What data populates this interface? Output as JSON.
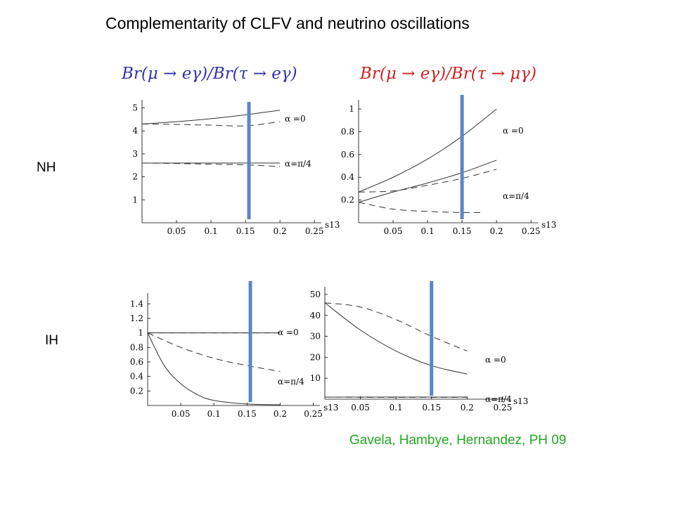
{
  "title": "Complementarity of CLFV and neutrino oscillations",
  "column_titles": [
    {
      "text": "Br(μ → eγ)/Br(τ → eγ)",
      "color": "#3333aa"
    },
    {
      "text": "Br(μ → eγ)/Br(τ → μγ)",
      "color": "#cc2222"
    }
  ],
  "row_labels": {
    "nh": "NH",
    "ih": "IH"
  },
  "credit": "Gavela, Hambye, Hernandez, PH 09",
  "marker_color": "#5b86c5",
  "chart_data": [
    {
      "type": "line",
      "panel": "NH, Br(μ→eγ)/Br(τ→eγ)",
      "xlabel": "s13",
      "xlim": [
        0,
        0.26
      ],
      "ylim": [
        0,
        5.2
      ],
      "xticks": [
        "0.05",
        "0.1",
        "0.15",
        "0.2",
        "0.25"
      ],
      "yticks": [
        "1",
        "2",
        "3",
        "4",
        "5"
      ],
      "vertical_marker_x": 0.155,
      "series": [
        {
          "label": "α =0",
          "style": "solid",
          "x": [
            0,
            0.05,
            0.1,
            0.15,
            0.2
          ],
          "y": [
            4.3,
            4.4,
            4.53,
            4.7,
            4.9
          ]
        },
        {
          "label": "",
          "style": "dashed",
          "x": [
            0,
            0.05,
            0.1,
            0.15,
            0.2
          ],
          "y": [
            4.3,
            4.28,
            4.25,
            4.22,
            4.4
          ]
        },
        {
          "label": "α=π/4",
          "style": "solid",
          "x": [
            0,
            0.05,
            0.1,
            0.15,
            0.2
          ],
          "y": [
            2.6,
            2.6,
            2.6,
            2.6,
            2.6
          ]
        },
        {
          "label": "",
          "style": "dashed",
          "x": [
            0,
            0.05,
            0.1,
            0.15,
            0.2
          ],
          "y": [
            2.6,
            2.58,
            2.55,
            2.52,
            2.45
          ]
        }
      ]
    },
    {
      "type": "line",
      "panel": "NH, Br(μ→eγ)/Br(τ→μγ)",
      "xlabel": "s13",
      "xlim": [
        0,
        0.26
      ],
      "ylim": [
        0,
        1.05
      ],
      "xticks": [
        "0.05",
        "0.1",
        "0.15",
        "0.2",
        "0.25"
      ],
      "yticks": [
        "0.2",
        "0.4",
        "0.6",
        "0.8",
        "1"
      ],
      "vertical_marker_x": 0.15,
      "series": [
        {
          "label": "α =0",
          "style": "solid",
          "x": [
            0,
            0.05,
            0.1,
            0.15,
            0.2
          ],
          "y": [
            0.27,
            0.4,
            0.56,
            0.76,
            1.0
          ]
        },
        {
          "label": "",
          "style": "dashed",
          "x": [
            0,
            0.05,
            0.1,
            0.15,
            0.2
          ],
          "y": [
            0.27,
            0.28,
            0.33,
            0.39,
            0.47
          ]
        },
        {
          "label": "α=π/4",
          "style": "solid",
          "x": [
            0,
            0.05,
            0.1,
            0.15,
            0.2
          ],
          "y": [
            0.18,
            0.27,
            0.35,
            0.44,
            0.55
          ]
        },
        {
          "label": "",
          "style": "dashed",
          "x": [
            0,
            0.05,
            0.1,
            0.15,
            0.18
          ],
          "y": [
            0.18,
            0.12,
            0.1,
            0.09,
            0.09
          ]
        }
      ]
    },
    {
      "type": "line",
      "panel": "IH, Br(μ→eγ)/Br(τ→eγ)",
      "xlabel": "s13",
      "xlim": [
        0,
        0.26
      ],
      "ylim": [
        0,
        1.5
      ],
      "xticks": [
        "0.05",
        "0.1",
        "0.15",
        "0.2",
        "0.25"
      ],
      "yticks": [
        "0.2",
        "0.4",
        "0.6",
        "0.8",
        "1",
        "1.2",
        "1.4"
      ],
      "vertical_marker_x": 0.155,
      "series": [
        {
          "label": "α =0",
          "style": "solid",
          "x": [
            0,
            0.05,
            0.1,
            0.15,
            0.2
          ],
          "y": [
            1.0,
            1.0,
            1.0,
            1.0,
            1.0
          ]
        },
        {
          "label": "",
          "style": "dashed",
          "x": [
            0,
            0.05,
            0.1,
            0.15,
            0.2
          ],
          "y": [
            1.0,
            1.0,
            1.0,
            1.0,
            1.0
          ]
        },
        {
          "label": "α=π/4",
          "style": "solid",
          "x": [
            0,
            0.025,
            0.05,
            0.075,
            0.1,
            0.15,
            0.2
          ],
          "y": [
            1.0,
            0.55,
            0.3,
            0.15,
            0.07,
            0.02,
            0.01
          ]
        },
        {
          "label": "",
          "style": "dashed",
          "x": [
            0,
            0.05,
            0.1,
            0.15,
            0.2
          ],
          "y": [
            1.0,
            0.8,
            0.65,
            0.55,
            0.47
          ]
        }
      ]
    },
    {
      "type": "line",
      "panel": "IH, Br(μ→eγ)/Br(τ→μγ)",
      "xlabel": "s13",
      "xlim": [
        0,
        0.26
      ],
      "ylim": [
        0,
        52
      ],
      "xticks": [
        "0.05",
        "0.1",
        "0.15",
        "0.2",
        "0.25"
      ],
      "yticks": [
        "10",
        "20",
        "30",
        "40",
        "50"
      ],
      "vertical_marker_x": 0.15,
      "series": [
        {
          "label": "α =0",
          "style": "solid",
          "x": [
            0,
            0.05,
            0.1,
            0.15,
            0.2
          ],
          "y": [
            46,
            33,
            23,
            16,
            12
          ]
        },
        {
          "label": "",
          "style": "dashed",
          "x": [
            0,
            0.05,
            0.1,
            0.15,
            0.2
          ],
          "y": [
            46,
            44,
            38,
            30,
            23
          ]
        },
        {
          "label": "α=π/4",
          "style": "solid",
          "x": [
            0,
            0.05,
            0.1,
            0.15,
            0.2
          ],
          "y": [
            1,
            1,
            1,
            1,
            1
          ]
        },
        {
          "label": "",
          "style": "dashed",
          "x": [
            0,
            0.05,
            0.1,
            0.15,
            0.2
          ],
          "y": [
            1,
            0.9,
            0.9,
            0.9,
            0.9
          ]
        }
      ]
    }
  ]
}
